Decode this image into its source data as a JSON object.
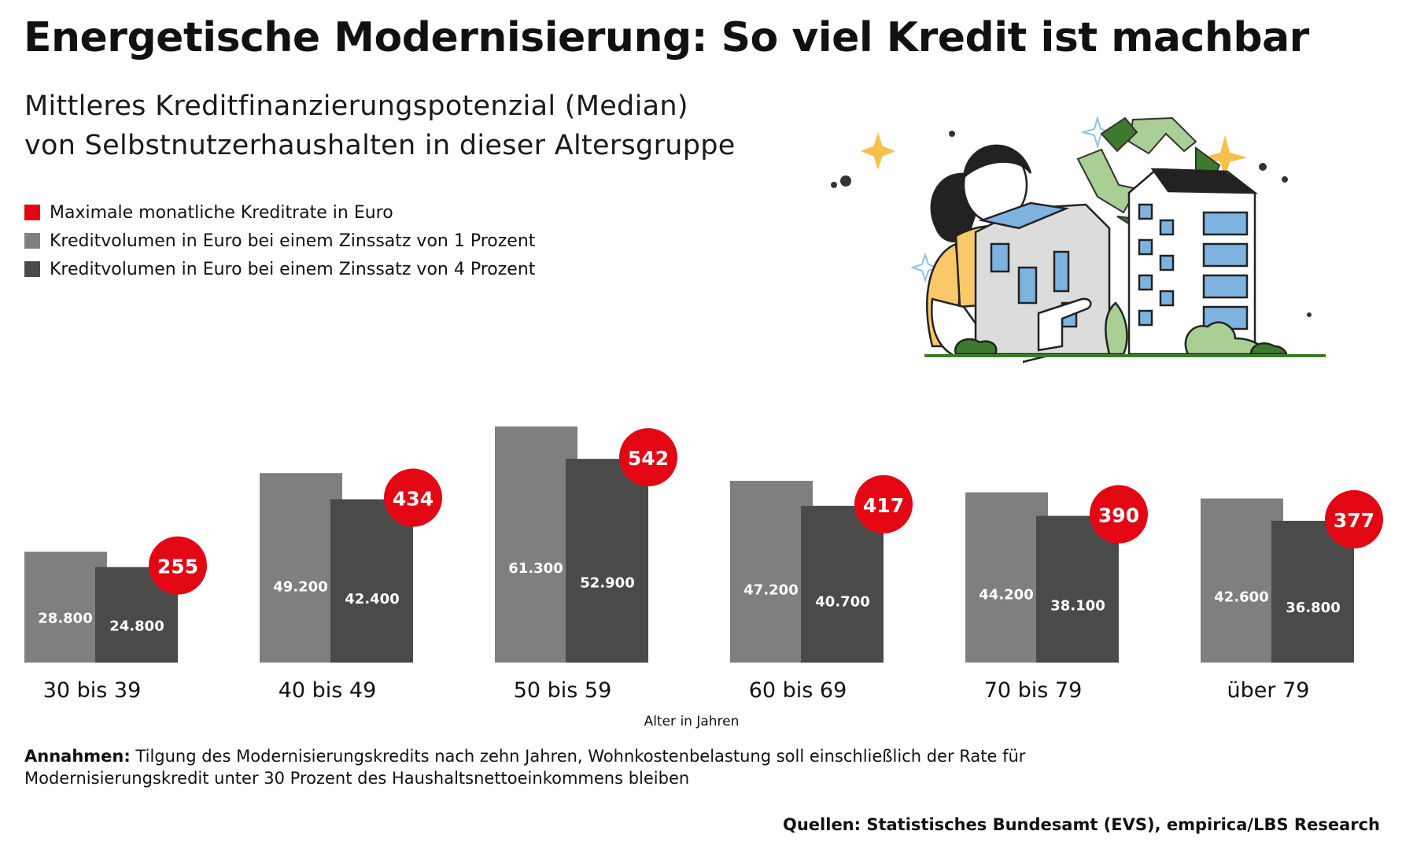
{
  "title": "Energetische Modernisierung: So viel Kredit ist machbar",
  "subtitle_line1": "Mittleres Kreditfinanzierungspotenzial (Median)",
  "subtitle_line2": "von Selbstnutzerhaushalten in dieser Altersgruppe",
  "legend": [
    {
      "label": "Maximale monatliche Kreditrate in Euro",
      "color": "#e30613"
    },
    {
      "label": "Kreditvolumen in Euro bei einem Zinssatz von 1 Prozent",
      "color": "#7f7f7f"
    },
    {
      "label": "Kreditvolumen in Euro bei einem Zinssatz von 4 Prozent",
      "color": "#4a4a4a"
    }
  ],
  "chart_data": {
    "type": "bar",
    "categories": [
      "30 bis 39",
      "40 bis 49",
      "50 bis 59",
      "60 bis 69",
      "70 bis 79",
      "über 79"
    ],
    "series": [
      {
        "name": "Kreditvolumen in Euro bei einem Zinssatz von 1 Prozent",
        "values": [
          28800,
          49200,
          61300,
          47200,
          44200,
          42600
        ],
        "labels": [
          "28.800",
          "49.200",
          "61.300",
          "47.200",
          "44.200",
          "42.600"
        ],
        "color": "#7f7f7f"
      },
      {
        "name": "Kreditvolumen in Euro bei einem Zinssatz von 4 Prozent",
        "values": [
          24800,
          42400,
          52900,
          40700,
          38100,
          36800
        ],
        "labels": [
          "24.800",
          "42.400",
          "52.900",
          "40.700",
          "38.100",
          "36.800"
        ],
        "color": "#4a4a4a"
      },
      {
        "name": "Maximale monatliche Kreditrate in Euro",
        "values": [
          255,
          434,
          542,
          417,
          390,
          377
        ],
        "labels": [
          "255",
          "434",
          "542",
          "417",
          "390",
          "377"
        ],
        "color": "#e30613"
      }
    ],
    "xlabel": "Alter in Jahren",
    "ylabel": "",
    "ylim": [
      0,
      61300
    ],
    "grid": false,
    "legend_position": "top-left"
  },
  "assumptions_label": "Annahmen:",
  "assumptions_text1": " Tilgung des Modernisierungskredits nach zehn Jahren, Wohnkostenbelastung soll einschließlich der Rate für",
  "assumptions_text2": "Modernisierungskredit unter 30 Prozent des Haushaltsnettoeinkommens bleiben",
  "sources": "Quellen: Statistisches Bundesamt (EVS), empirica/LBS Research"
}
